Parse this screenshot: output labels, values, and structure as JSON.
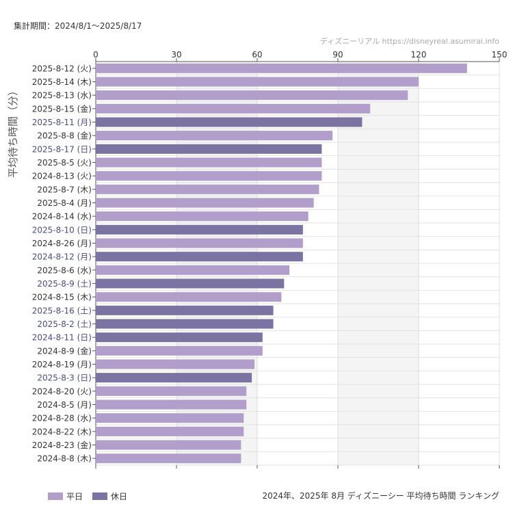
{
  "header": {
    "period": "集計期間：2024/8/1～2025/8/17",
    "credit": "ディズニーリアル https://disneyreal.asumirai.info"
  },
  "colors": {
    "weekday": "#b19ecb",
    "holiday": "#7b74a3",
    "holiday_label": "#4a4a8a",
    "weekday_label": "#333333"
  },
  "legend": [
    {
      "label": "平日",
      "kind": "weekday"
    },
    {
      "label": "休日",
      "kind": "holiday"
    }
  ],
  "footer": {
    "caption": "2024年、2025年 8月 ディズニーシー 平均待ち時間 ランキング"
  },
  "chart_data": {
    "type": "bar",
    "orientation": "horizontal",
    "ylabel": "平均待ち時間（分）",
    "xlim": [
      0,
      150
    ],
    "xticks": [
      "0",
      "30",
      "60",
      "90",
      "120",
      "150"
    ],
    "grid": true,
    "categories": [
      "2025-8-12 (火)",
      "2025-8-14 (木)",
      "2025-8-13 (水)",
      "2025-8-15 (金)",
      "2025-8-11 (月)",
      "2025-8-8 (金)",
      "2025-8-17 (日)",
      "2025-8-5 (火)",
      "2024-8-13 (火)",
      "2025-8-7 (木)",
      "2025-8-4 (月)",
      "2024-8-14 (水)",
      "2025-8-10 (日)",
      "2024-8-26 (月)",
      "2024-8-12 (月)",
      "2025-8-6 (水)",
      "2025-8-9 (土)",
      "2024-8-15 (木)",
      "2025-8-16 (土)",
      "2025-8-2 (土)",
      "2024-8-11 (日)",
      "2024-8-9 (金)",
      "2024-8-19 (月)",
      "2025-8-3 (日)",
      "2024-8-20 (火)",
      "2024-8-5 (月)",
      "2024-8-28 (水)",
      "2024-8-22 (木)",
      "2024-8-23 (金)",
      "2024-8-8 (木)"
    ],
    "values": [
      138,
      120,
      116,
      102,
      99,
      88,
      84,
      84,
      84,
      83,
      81,
      79,
      77,
      77,
      77,
      72,
      70,
      69,
      66,
      66,
      62,
      62,
      59,
      58,
      56,
      56,
      55,
      55,
      54,
      54
    ],
    "day_type": [
      "weekday",
      "weekday",
      "weekday",
      "weekday",
      "holiday",
      "weekday",
      "holiday",
      "weekday",
      "weekday",
      "weekday",
      "weekday",
      "weekday",
      "holiday",
      "weekday",
      "holiday",
      "weekday",
      "holiday",
      "weekday",
      "holiday",
      "holiday",
      "holiday",
      "weekday",
      "weekday",
      "holiday",
      "weekday",
      "weekday",
      "weekday",
      "weekday",
      "weekday",
      "weekday"
    ]
  }
}
